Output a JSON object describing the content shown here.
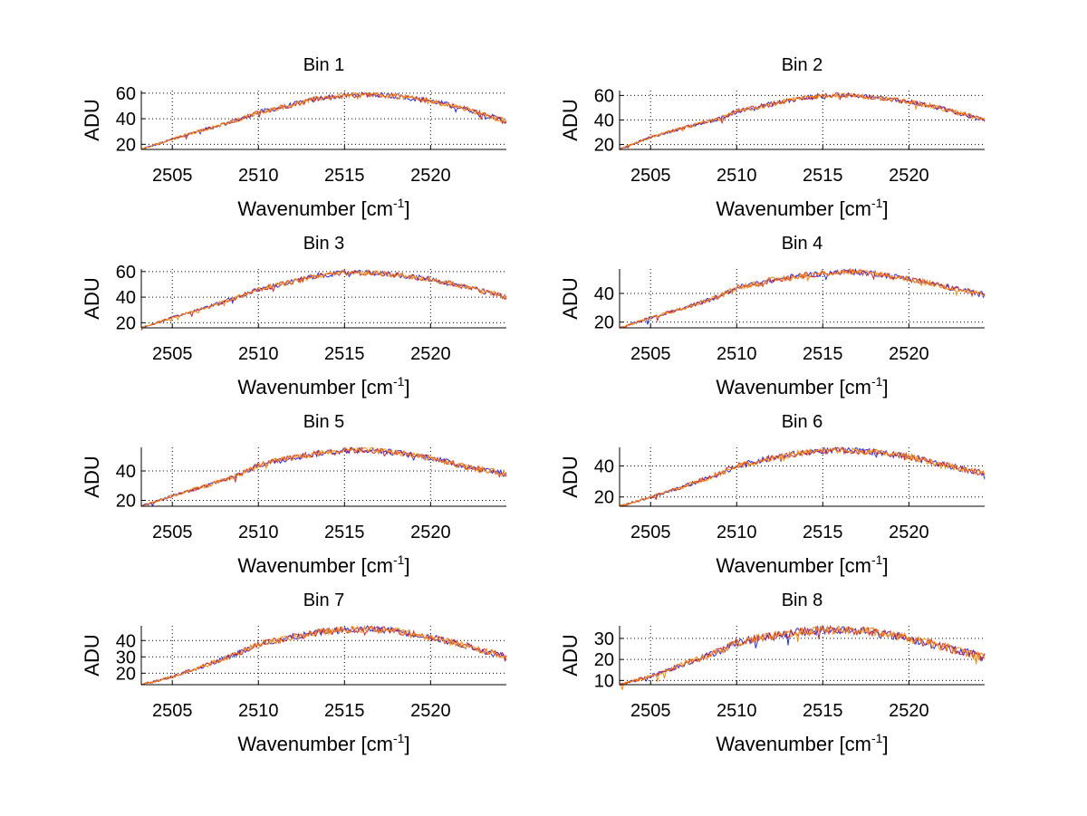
{
  "colors": {
    "background": "#ffffff",
    "axes": "#000000",
    "grid": "#000000",
    "series": [
      "#1f2bff",
      "#d62728",
      "#ff8c00"
    ]
  },
  "figure": {
    "xlabel": "Wavenumber [cm",
    "xlabel_sup": "-1",
    "xlabel_end": "]",
    "ylabel": "ADU"
  },
  "chart_data": [
    {
      "type": "line",
      "title": "Bin 1",
      "xlim": [
        2503.2,
        2524.4
      ],
      "ylim": [
        16,
        62
      ],
      "xticks": [
        2505,
        2510,
        2515,
        2520
      ],
      "yticks": [
        20,
        40,
        60
      ],
      "grid": true,
      "profile": [
        [
          2503.2,
          16
        ],
        [
          2505,
          24
        ],
        [
          2507,
          32
        ],
        [
          2509,
          40
        ],
        [
          2510,
          45
        ],
        [
          2512,
          51
        ],
        [
          2513.5,
          56
        ],
        [
          2515,
          58
        ],
        [
          2516.5,
          59
        ],
        [
          2518,
          57.5
        ],
        [
          2520,
          54
        ],
        [
          2522,
          48
        ],
        [
          2524.4,
          38
        ]
      ]
    },
    {
      "type": "line",
      "title": "Bin 2",
      "xlim": [
        2503.2,
        2524.4
      ],
      "ylim": [
        16,
        64
      ],
      "xticks": [
        2505,
        2510,
        2515,
        2520
      ],
      "yticks": [
        20,
        40,
        60
      ],
      "grid": true,
      "profile": [
        [
          2503.2,
          16
        ],
        [
          2505,
          26
        ],
        [
          2507,
          34
        ],
        [
          2509,
          41
        ],
        [
          2510,
          47
        ],
        [
          2512,
          53
        ],
        [
          2513.5,
          57
        ],
        [
          2515,
          60
        ],
        [
          2516.5,
          60
        ],
        [
          2518,
          58.5
        ],
        [
          2520,
          55
        ],
        [
          2522,
          49
        ],
        [
          2524.4,
          40
        ]
      ]
    },
    {
      "type": "line",
      "title": "Bin 3",
      "xlim": [
        2503.2,
        2524.4
      ],
      "ylim": [
        16,
        62
      ],
      "xticks": [
        2505,
        2510,
        2515,
        2520
      ],
      "yticks": [
        20,
        40,
        60
      ],
      "grid": true,
      "profile": [
        [
          2503.2,
          16
        ],
        [
          2505,
          24
        ],
        [
          2507,
          32
        ],
        [
          2509,
          41
        ],
        [
          2510,
          46
        ],
        [
          2512,
          52
        ],
        [
          2513.5,
          57
        ],
        [
          2515,
          59
        ],
        [
          2516.5,
          59
        ],
        [
          2518,
          57.5
        ],
        [
          2520,
          54
        ],
        [
          2522,
          48
        ],
        [
          2524.4,
          40
        ]
      ]
    },
    {
      "type": "line",
      "title": "Bin 4",
      "xlim": [
        2503.2,
        2524.4
      ],
      "ylim": [
        16,
        57
      ],
      "xticks": [
        2505,
        2510,
        2515,
        2520
      ],
      "yticks": [
        20,
        40
      ],
      "grid": true,
      "profile": [
        [
          2503.2,
          16
        ],
        [
          2505,
          23
        ],
        [
          2507,
          30
        ],
        [
          2509,
          38
        ],
        [
          2510,
          44
        ],
        [
          2512,
          49
        ],
        [
          2513.5,
          52
        ],
        [
          2515,
          54
        ],
        [
          2516.5,
          55
        ],
        [
          2518,
          54
        ],
        [
          2520,
          50
        ],
        [
          2522,
          45
        ],
        [
          2524.4,
          39
        ]
      ]
    },
    {
      "type": "line",
      "title": "Bin 5",
      "xlim": [
        2503.2,
        2524.4
      ],
      "ylim": [
        16,
        56
      ],
      "xticks": [
        2505,
        2510,
        2515,
        2520
      ],
      "yticks": [
        20,
        40
      ],
      "grid": true,
      "profile": [
        [
          2503.2,
          16
        ],
        [
          2505,
          23
        ],
        [
          2507,
          30
        ],
        [
          2509,
          38
        ],
        [
          2510,
          44
        ],
        [
          2512,
          49
        ],
        [
          2513.5,
          52
        ],
        [
          2515,
          54
        ],
        [
          2516.5,
          54
        ],
        [
          2518,
          52.5
        ],
        [
          2520,
          49
        ],
        [
          2522,
          43
        ],
        [
          2524.4,
          38
        ]
      ]
    },
    {
      "type": "line",
      "title": "Bin 6",
      "xlim": [
        2503.2,
        2524.4
      ],
      "ylim": [
        14,
        52
      ],
      "xticks": [
        2505,
        2510,
        2515,
        2520
      ],
      "yticks": [
        20,
        40
      ],
      "grid": true,
      "profile": [
        [
          2503.2,
          14
        ],
        [
          2505,
          20
        ],
        [
          2507,
          27
        ],
        [
          2509,
          35
        ],
        [
          2510,
          40
        ],
        [
          2512,
          45
        ],
        [
          2513.5,
          48
        ],
        [
          2515,
          50
        ],
        [
          2516.5,
          50
        ],
        [
          2518,
          49
        ],
        [
          2520,
          46
        ],
        [
          2522,
          41
        ],
        [
          2524.4,
          35
        ]
      ]
    },
    {
      "type": "line",
      "title": "Bin 7",
      "xlim": [
        2503.2,
        2524.4
      ],
      "ylim": [
        13,
        49
      ],
      "xticks": [
        2505,
        2510,
        2515,
        2520
      ],
      "yticks": [
        20,
        30,
        40
      ],
      "grid": true,
      "profile": [
        [
          2503.2,
          13
        ],
        [
          2505,
          18
        ],
        [
          2507,
          25
        ],
        [
          2509,
          33
        ],
        [
          2510,
          38
        ],
        [
          2512,
          42
        ],
        [
          2513.5,
          45
        ],
        [
          2515,
          46.5
        ],
        [
          2516.5,
          47
        ],
        [
          2518,
          46
        ],
        [
          2520,
          42
        ],
        [
          2522,
          37
        ],
        [
          2524.4,
          30
        ]
      ]
    },
    {
      "type": "line",
      "title": "Bin 8",
      "xlim": [
        2503.2,
        2524.4
      ],
      "ylim": [
        8,
        36
      ],
      "xticks": [
        2505,
        2510,
        2515,
        2520
      ],
      "yticks": [
        10,
        20,
        30
      ],
      "grid": true,
      "profile": [
        [
          2503.2,
          8
        ],
        [
          2505,
          12
        ],
        [
          2507,
          18
        ],
        [
          2509,
          24
        ],
        [
          2510,
          28
        ],
        [
          2512,
          31
        ],
        [
          2513.5,
          33
        ],
        [
          2515,
          34
        ],
        [
          2516.5,
          34
        ],
        [
          2518,
          33
        ],
        [
          2520,
          30
        ],
        [
          2522,
          26
        ],
        [
          2524.4,
          21
        ]
      ]
    }
  ]
}
